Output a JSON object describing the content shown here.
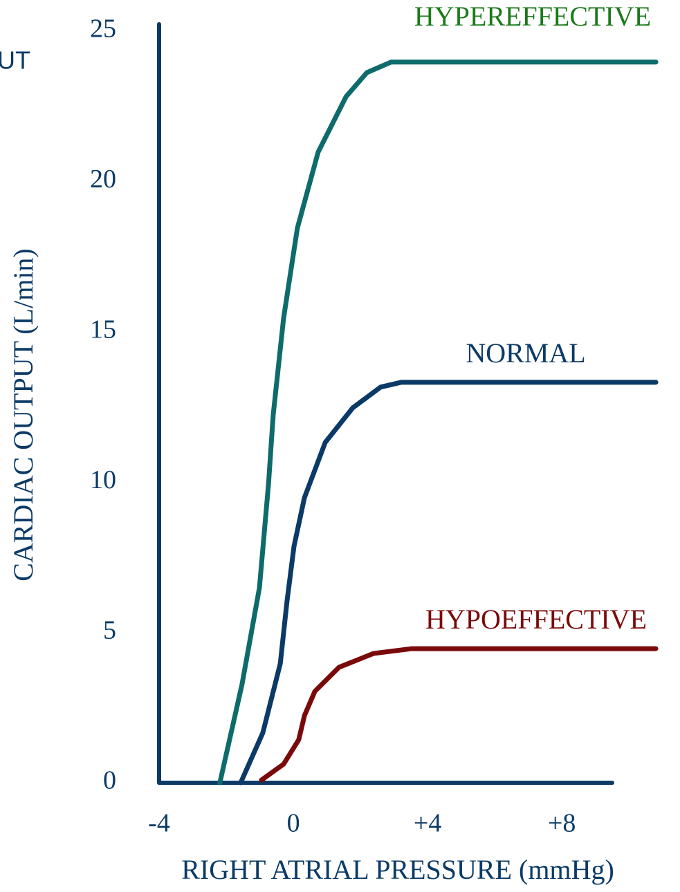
{
  "fragment": "UT",
  "chart_data": {
    "type": "line",
    "xlabel": "RIGHT ATRIAL PRESSURE (mmHg)",
    "ylabel": "CARDIAC OUTPUT (L/min)",
    "axis_color": "#0b3a66",
    "xlim": [
      -4,
      9.5
    ],
    "xticks": [
      -4,
      0,
      {
        "value": 4,
        "label": "+4"
      },
      {
        "value": 8,
        "label": "+8"
      }
    ],
    "ylim": [
      0,
      25
    ],
    "yticks": [
      0,
      5,
      10,
      15,
      20,
      25
    ],
    "grid": false,
    "series": [
      {
        "name": "HYPEREFFECTIVE",
        "color": "#0e6b6b",
        "label_color": "#1a7a1a",
        "x": [
          -2.19,
          -1.53,
          -1.01,
          -0.74,
          -0.6,
          -0.29,
          0.12,
          0.74,
          1.57,
          2.19,
          2.91,
          10.8
        ],
        "values": [
          0,
          3.27,
          6.49,
          9.94,
          12.24,
          15.46,
          18.45,
          20.98,
          22.82,
          23.62,
          23.97,
          23.97
        ]
      },
      {
        "name": "NORMAL",
        "color": "#0b3a66",
        "label_color": "#0b3a66",
        "x": [
          -1.57,
          -0.91,
          -0.39,
          -0.19,
          0.02,
          0.33,
          0.95,
          1.77,
          2.6,
          3.22,
          10.8
        ],
        "values": [
          0,
          1.66,
          3.96,
          6.03,
          7.87,
          9.48,
          11.32,
          12.47,
          13.16,
          13.32,
          13.32
        ]
      },
      {
        "name": "HYPOEFFECTIVE",
        "color": "#7a0a0a",
        "label_color": "#7a0a0a",
        "x": [
          -0.95,
          -0.29,
          0.16,
          0.33,
          0.64,
          1.36,
          2.39,
          3.53,
          10.8
        ],
        "values": [
          0.09,
          0.62,
          1.43,
          2.23,
          3.04,
          3.84,
          4.3,
          4.46,
          4.46
        ]
      }
    ]
  }
}
